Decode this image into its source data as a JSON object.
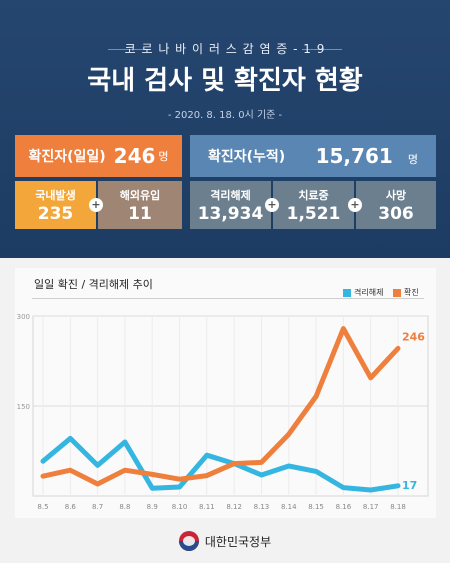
{
  "header": {
    "subtitle": "코 로 나 바 이 러 스 감 염 증 - 1 9",
    "title": "국내 검사 및 확진자 현황",
    "date": "- 2020. 8. 18. 0시 기준 -"
  },
  "daily": {
    "label": "확진자(일일)",
    "value": "246",
    "unit": "명"
  },
  "cumulative": {
    "label": "확진자(누적)",
    "value": "15,761",
    "unit": "명"
  },
  "breakdown": [
    {
      "label": "국내발생",
      "value": "235"
    },
    {
      "label": "해외유입",
      "value": "11"
    },
    {
      "label": "격리해제",
      "value": "13,934"
    },
    {
      "label": "치료중",
      "value": "1,521"
    },
    {
      "label": "사망",
      "value": "306"
    }
  ],
  "colors": {
    "released": "#35b6e0",
    "confirmed": "#ee7f3d",
    "header_bg": "#25466f"
  },
  "chart_data": {
    "type": "line",
    "title": "일일 확진 / 격리해제 추이",
    "categories": [
      "8.5",
      "8.6",
      "8.7",
      "8.8",
      "8.9",
      "8.10",
      "8.11",
      "8.12",
      "8.13",
      "8.14",
      "8.15",
      "8.16",
      "8.17",
      "8.18"
    ],
    "yticks": [
      150,
      300
    ],
    "ylim": [
      0,
      300
    ],
    "grid": true,
    "legend_position": "top-right",
    "series": [
      {
        "name": "격리해제",
        "color": "#35b6e0",
        "values": [
          58,
          96,
          51,
          90,
          13,
          15,
          68,
          54,
          35,
          50,
          41,
          14,
          10,
          17
        ]
      },
      {
        "name": "확진",
        "color": "#ee7f3d",
        "values": [
          33,
          43,
          20,
          43,
          36,
          28,
          34,
          54,
          56,
          103,
          166,
          279,
          197,
          246
        ]
      }
    ],
    "end_labels": [
      "17",
      "246"
    ]
  },
  "footer": {
    "org": "대한민국정부"
  }
}
